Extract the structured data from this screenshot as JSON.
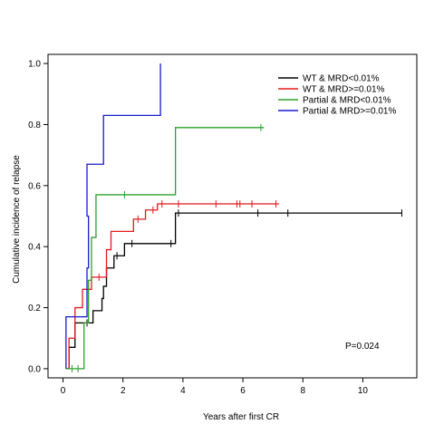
{
  "chart_data": {
    "type": "line",
    "step": true,
    "title": "",
    "xlabel": "Years after first CR",
    "ylabel": "Cumulative incidence of relapse",
    "xlim": [
      -0.5,
      11.8
    ],
    "ylim": [
      -0.03,
      1.03
    ],
    "xticks": [
      0,
      2,
      4,
      6,
      8,
      10
    ],
    "yticks": [
      0.0,
      0.2,
      0.4,
      0.6,
      0.8,
      1.0
    ],
    "xtick_labels": [
      "0",
      "2",
      "4",
      "6",
      "8",
      "10"
    ],
    "ytick_labels": [
      "0.0",
      "0.2",
      "0.4",
      "0.6",
      "0.8",
      "1.0"
    ],
    "grid": false,
    "legend_position": "top-right",
    "annotation": "P=0.024",
    "series": [
      {
        "name": "WT & MRD<0.01%",
        "color": "#000000",
        "points": [
          [
            0.1,
            0.0
          ],
          [
            0.2,
            0.07
          ],
          [
            0.3,
            0.07
          ],
          [
            0.4,
            0.15
          ],
          [
            0.9,
            0.15
          ],
          [
            1.0,
            0.19
          ],
          [
            1.2,
            0.19
          ],
          [
            1.3,
            0.23
          ],
          [
            1.35,
            0.27
          ],
          [
            1.45,
            0.33
          ],
          [
            1.6,
            0.33
          ],
          [
            1.7,
            0.37
          ],
          [
            2.0,
            0.37
          ],
          [
            2.05,
            0.41
          ],
          [
            3.7,
            0.41
          ],
          [
            3.75,
            0.51
          ],
          [
            11.3,
            0.51
          ]
        ],
        "censor": [
          [
            0.8,
            0.15
          ],
          [
            1.8,
            0.37
          ],
          [
            2.3,
            0.41
          ],
          [
            3.6,
            0.41
          ],
          [
            3.85,
            0.51
          ],
          [
            6.5,
            0.51
          ],
          [
            7.5,
            0.51
          ],
          [
            11.3,
            0.51
          ]
        ]
      },
      {
        "name": "WT & MRD>=0.01%",
        "color": "#e41a1c",
        "points": [
          [
            0.1,
            0.0
          ],
          [
            0.2,
            0.1
          ],
          [
            0.3,
            0.1
          ],
          [
            0.4,
            0.2
          ],
          [
            0.6,
            0.2
          ],
          [
            0.65,
            0.26
          ],
          [
            0.9,
            0.26
          ],
          [
            0.95,
            0.3
          ],
          [
            1.4,
            0.3
          ],
          [
            1.45,
            0.39
          ],
          [
            1.55,
            0.39
          ],
          [
            1.6,
            0.45
          ],
          [
            2.3,
            0.45
          ],
          [
            2.35,
            0.49
          ],
          [
            2.7,
            0.49
          ],
          [
            2.75,
            0.52
          ],
          [
            3.1,
            0.52
          ],
          [
            3.15,
            0.54
          ],
          [
            7.2,
            0.54
          ]
        ],
        "censor": [
          [
            1.2,
            0.3
          ],
          [
            2.5,
            0.49
          ],
          [
            3.0,
            0.52
          ],
          [
            3.3,
            0.54
          ],
          [
            3.85,
            0.54
          ],
          [
            5.1,
            0.54
          ],
          [
            5.8,
            0.54
          ],
          [
            5.9,
            0.54
          ],
          [
            6.3,
            0.54
          ],
          [
            7.1,
            0.54
          ]
        ]
      },
      {
        "name": "Partial & MRD<0.01%",
        "color": "#2ca02c",
        "points": [
          [
            0.1,
            0.0
          ],
          [
            0.7,
            0.0
          ],
          [
            0.7,
            0.15
          ],
          [
            0.8,
            0.15
          ],
          [
            0.85,
            0.29
          ],
          [
            0.9,
            0.29
          ],
          [
            0.95,
            0.43
          ],
          [
            1.05,
            0.43
          ],
          [
            1.1,
            0.57
          ],
          [
            3.7,
            0.57
          ],
          [
            3.75,
            0.79
          ],
          [
            6.7,
            0.79
          ]
        ],
        "censor": [
          [
            0.3,
            0.0
          ],
          [
            0.5,
            0.0
          ],
          [
            2.05,
            0.57
          ],
          [
            6.6,
            0.79
          ]
        ]
      },
      {
        "name": "Partial & MRD>=0.01%",
        "color": "#1a1ad0",
        "points": [
          [
            0.1,
            0.0
          ],
          [
            0.1,
            0.17
          ],
          [
            0.75,
            0.17
          ],
          [
            0.8,
            0.33
          ],
          [
            0.85,
            0.5
          ],
          [
            0.8,
            0.5
          ],
          [
            0.8,
            0.67
          ],
          [
            1.3,
            0.67
          ],
          [
            1.35,
            0.83
          ],
          [
            3.25,
            0.83
          ],
          [
            3.25,
            1.0
          ]
        ],
        "censor": []
      }
    ]
  }
}
